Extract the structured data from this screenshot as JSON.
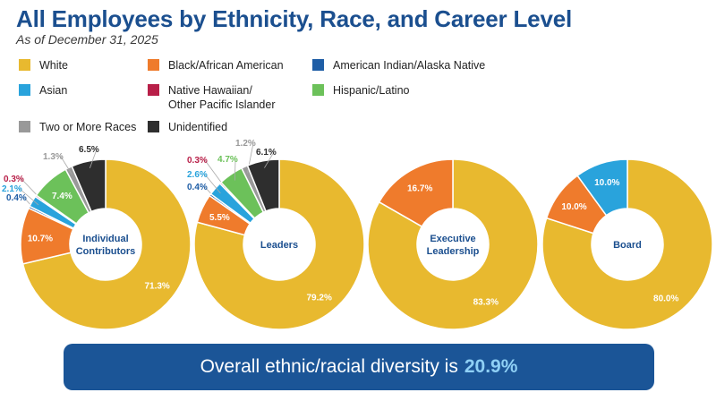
{
  "title": "All Employees by Ethnicity, Race, and Career Level",
  "subtitle": "As of December 31, 2025",
  "colors": {
    "white": "#e8b92f",
    "black": "#ef7b2c",
    "american_indian": "#1f5ea6",
    "asian": "#29a3dc",
    "native_hawaiian": "#b81f48",
    "hispanic": "#6cc15a",
    "two_or_more": "#999999",
    "unidentified": "#2e2e2e"
  },
  "legend": [
    {
      "key": "white",
      "label": "White"
    },
    {
      "key": "black",
      "label": "Black/African American"
    },
    {
      "key": "american_indian",
      "label": "American Indian/Alaska Native"
    },
    {
      "key": "asian",
      "label": "Asian"
    },
    {
      "key": "native_hawaiian",
      "label": "Native Hawaiian/\nOther Pacific Islander"
    },
    {
      "key": "hispanic",
      "label": "Hispanic/Latino"
    },
    {
      "key": "two_or_more",
      "label": "Two or More Races"
    },
    {
      "key": "unidentified",
      "label": "Unidentified"
    }
  ],
  "chart_data": [
    {
      "type": "pie",
      "title": "Individual\nContributors",
      "slices": [
        {
          "key": "white",
          "value": 71.3,
          "label": "71.3%"
        },
        {
          "key": "black",
          "value": 10.7,
          "label": "10.7%"
        },
        {
          "key": "american_indian",
          "value": 0.4,
          "label": "0.4%"
        },
        {
          "key": "asian",
          "value": 2.1,
          "label": "2.1%"
        },
        {
          "key": "native_hawaiian",
          "value": 0.3,
          "label": "0.3%"
        },
        {
          "key": "hispanic",
          "value": 7.4,
          "label": "7.4%"
        },
        {
          "key": "two_or_more",
          "value": 1.3,
          "label": "1.3%"
        },
        {
          "key": "unidentified",
          "value": 6.5,
          "label": "6.5%"
        }
      ]
    },
    {
      "type": "pie",
      "title": "Leaders",
      "slices": [
        {
          "key": "white",
          "value": 79.2,
          "label": "79.2%"
        },
        {
          "key": "black",
          "value": 5.5,
          "label": "5.5%"
        },
        {
          "key": "american_indian",
          "value": 0.4,
          "label": "0.4%"
        },
        {
          "key": "asian",
          "value": 2.6,
          "label": "2.6%"
        },
        {
          "key": "native_hawaiian",
          "value": 0.3,
          "label": "0.3%"
        },
        {
          "key": "hispanic",
          "value": 4.7,
          "label": "4.7%"
        },
        {
          "key": "two_or_more",
          "value": 1.2,
          "label": "1.2%"
        },
        {
          "key": "unidentified",
          "value": 6.1,
          "label": "6.1%"
        }
      ]
    },
    {
      "type": "pie",
      "title": "Executive\nLeadership",
      "slices": [
        {
          "key": "white",
          "value": 83.3,
          "label": "83.3%"
        },
        {
          "key": "black",
          "value": 16.7,
          "label": "16.7%"
        }
      ]
    },
    {
      "type": "pie",
      "title": "Board",
      "slices": [
        {
          "key": "white",
          "value": 80.0,
          "label": "80.0%"
        },
        {
          "key": "black",
          "value": 10.0,
          "label": "10.0%"
        },
        {
          "key": "asian",
          "value": 10.0,
          "label": "10.0%"
        }
      ]
    }
  ],
  "footer": {
    "text": "Overall ethnic/racial diversity is",
    "highlight": "20.9%"
  }
}
